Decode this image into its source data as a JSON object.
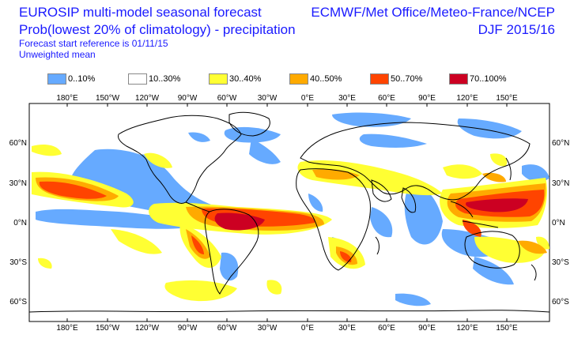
{
  "header": {
    "title_line_1": "EUROSIP multi-model seasonal forecast",
    "title_line_2": "Prob(lowest 20% of climatology) - precipitation",
    "forecast_start": "Forecast start reference is 01/11/15",
    "weighting": "Unweighted mean",
    "centres": "ECMWF/Met Office/Meteo-France/NCEP",
    "season": "DJF 2015/16"
  },
  "legend": [
    {
      "label": "0..10%",
      "color": "#66aaff"
    },
    {
      "label": "10..30%",
      "color": "#ffffff"
    },
    {
      "label": "30..40%",
      "color": "#ffff33"
    },
    {
      "label": "40..50%",
      "color": "#ffaa00"
    },
    {
      "label": "50..70%",
      "color": "#ff4400"
    },
    {
      "label": "70..100%",
      "color": "#cc0022"
    }
  ],
  "map": {
    "lon_ticks": [
      "180°E",
      "150°W",
      "120°W",
      "90°W",
      "60°W",
      "30°W",
      "0°E",
      "30°E",
      "60°E",
      "90°E",
      "120°E",
      "150°E"
    ],
    "lat_ticks_left": [
      "60°N",
      "30°N",
      "0°N",
      "30°S",
      "60°S"
    ],
    "lat_ticks_right": [
      "60°N",
      "30°N",
      "0°N",
      "30°S",
      "60°S"
    ]
  }
}
